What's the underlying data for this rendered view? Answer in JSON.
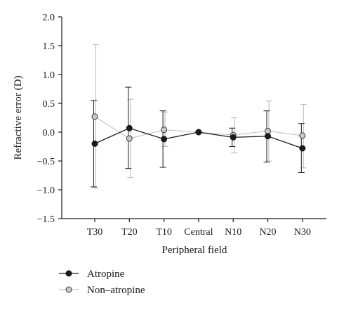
{
  "chart_data": {
    "type": "line",
    "title": "",
    "xlabel": "Peripheral field",
    "ylabel": "Refractive error (D)",
    "ylim": [
      -1.5,
      2.0
    ],
    "yticks": [
      -1.5,
      -1.0,
      -0.5,
      0.0,
      0.5,
      1.0,
      1.5,
      2.0
    ],
    "ytick_labels": [
      "−1.5",
      "−1.0",
      "−0.5",
      "0.0",
      "0.5",
      "1.0",
      "1.5",
      "2.0"
    ],
    "categories": [
      "T30",
      "T20",
      "T10",
      "Central",
      "N10",
      "N20",
      "N30"
    ],
    "grid": false,
    "legend_position": "bottom-left",
    "series": [
      {
        "name": "Atropine",
        "color": "#1a1a1a",
        "marker": "filled-circle",
        "values": [
          -0.2,
          0.07,
          -0.12,
          0.0,
          -0.09,
          -0.07,
          -0.28
        ],
        "error_low": [
          -0.95,
          -0.63,
          -0.61,
          0.0,
          -0.25,
          -0.52,
          -0.7
        ],
        "error_high": [
          0.55,
          0.78,
          0.37,
          0.0,
          0.07,
          0.37,
          0.15
        ]
      },
      {
        "name": "Non–atropine",
        "color": "#b8b8b8",
        "marker": "gray-circle",
        "values": [
          0.27,
          -0.11,
          0.04,
          0.0,
          -0.05,
          0.02,
          -0.06
        ],
        "error_low": [
          -0.97,
          -0.79,
          -0.25,
          0.0,
          -0.36,
          -0.5,
          -0.62
        ],
        "error_high": [
          1.52,
          0.57,
          0.35,
          0.0,
          0.25,
          0.54,
          0.48
        ]
      }
    ]
  }
}
